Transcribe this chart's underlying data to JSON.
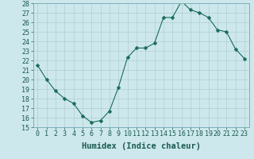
{
  "xlabel": "Humidex (Indice chaleur)",
  "ylabel": "",
  "x_values": [
    0,
    1,
    2,
    3,
    4,
    5,
    6,
    7,
    8,
    9,
    10,
    11,
    12,
    13,
    14,
    15,
    16,
    17,
    18,
    19,
    20,
    21,
    22,
    23
  ],
  "y_values": [
    21.5,
    20.0,
    18.8,
    18.0,
    17.5,
    16.2,
    15.5,
    15.7,
    16.7,
    19.2,
    22.3,
    23.3,
    23.3,
    23.8,
    26.5,
    26.5,
    28.2,
    27.3,
    27.0,
    26.5,
    25.2,
    25.0,
    23.2,
    22.2
  ],
  "line_color": "#1a6b5a",
  "marker": "D",
  "marker_size": 2.5,
  "bg_color": "#cde8ec",
  "grid_color": "#b0ced4",
  "ylim": [
    15,
    28
  ],
  "xlim": [
    -0.5,
    23.5
  ],
  "yticks": [
    15,
    16,
    17,
    18,
    19,
    20,
    21,
    22,
    23,
    24,
    25,
    26,
    27,
    28
  ],
  "xticks": [
    0,
    1,
    2,
    3,
    4,
    5,
    6,
    7,
    8,
    9,
    10,
    11,
    12,
    13,
    14,
    15,
    16,
    17,
    18,
    19,
    20,
    21,
    22,
    23
  ],
  "tick_fontsize": 6,
  "label_fontsize": 7.5
}
